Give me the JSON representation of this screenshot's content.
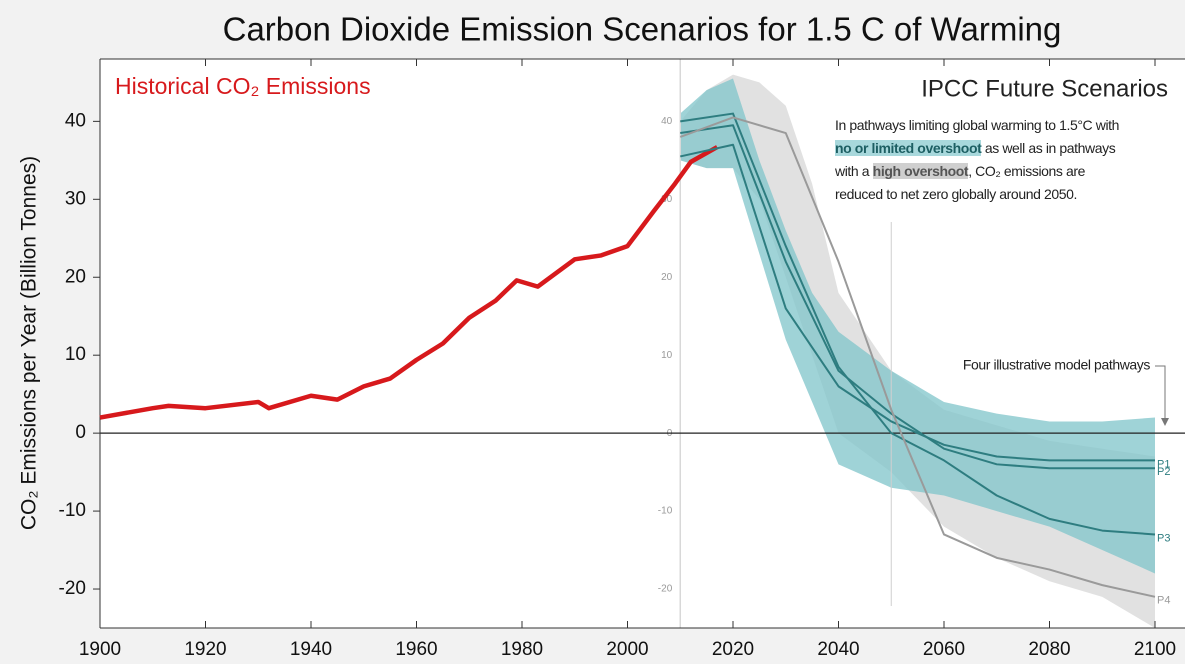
{
  "chart_data": {
    "type": "line",
    "title": "Carbon Dioxide Emission Scenarios for 1.5 C of Warming",
    "y_label": "CO₂ Emissions per Year (Billion Tonnes)",
    "annotations": {
      "future": "IPCC Future Scenarios",
      "note": [
        "In pathways limiting global warming to 1.5°C with ",
        "no or limited overshoot",
        " as well as in pathways with a ",
        "high overshoot",
        ", CO₂ emissions are reduced to net zero globally around 2050."
      ],
      "pathways": "Four illustrative model pathways"
    },
    "xlim": [
      1900,
      2100
    ],
    "xticks": [
      1900,
      1920,
      1940,
      1960,
      1980,
      2000,
      2020,
      2040,
      2060,
      2080,
      2100
    ],
    "ylim": [
      -25,
      48
    ],
    "yticks": [
      -20,
      -10,
      0,
      10,
      20,
      30,
      40
    ],
    "bands": [
      {
        "color": "#d9d9d9",
        "x": [
          2010,
          2015,
          2020,
          2025,
          2030,
          2035,
          2040,
          2050,
          2060,
          2070,
          2080,
          2090,
          2100
        ],
        "upper": [
          40,
          44,
          46,
          45,
          42,
          32,
          18,
          8,
          3,
          1,
          -1,
          -2,
          -3
        ],
        "lower": [
          35,
          34,
          34,
          30,
          20,
          10,
          0,
          -5,
          -12,
          -16,
          -19,
          -21,
          -25
        ]
      },
      {
        "color": "#7fc4c9",
        "x": [
          2010,
          2015,
          2020,
          2025,
          2030,
          2035,
          2040,
          2050,
          2060,
          2070,
          2080,
          2090,
          2100
        ],
        "upper": [
          41,
          44,
          45.5,
          35,
          26,
          18,
          13,
          8,
          4,
          2.5,
          1.5,
          1.5,
          2
        ],
        "lower": [
          35,
          34,
          34,
          23,
          12,
          4,
          -4,
          -7,
          -8,
          -10,
          -12,
          -15,
          -18
        ]
      }
    ],
    "series": [
      {
        "name": "Historical CO₂ Emissions",
        "color": "#d7191c",
        "x": [
          1900,
          1910,
          1913,
          1920,
          1930,
          1932,
          1940,
          1945,
          1950,
          1955,
          1960,
          1965,
          1970,
          1975,
          1979,
          1983,
          1990,
          1995,
          2000,
          2005,
          2009,
          2012,
          2017
        ],
        "values": [
          2,
          3.2,
          3.5,
          3.2,
          4,
          3.2,
          4.8,
          4.3,
          6,
          7,
          9.4,
          11.5,
          14.8,
          17,
          19.6,
          18.8,
          22.3,
          22.8,
          24,
          28.5,
          32,
          34.8,
          36.7
        ]
      },
      {
        "name": "P1",
        "color": "#2e7d80",
        "x": [
          2010,
          2020,
          2030,
          2040,
          2050,
          2060,
          2070,
          2080,
          2100
        ],
        "values": [
          35.5,
          37,
          16,
          6,
          1.5,
          -1.5,
          -3,
          -3.5,
          -3.5
        ]
      },
      {
        "name": "P2",
        "color": "#2e7d80",
        "x": [
          2010,
          2020,
          2030,
          2040,
          2050,
          2060,
          2070,
          2080,
          2100
        ],
        "values": [
          38.5,
          39.5,
          22,
          8,
          2.5,
          -2,
          -4,
          -4.5,
          -4.5
        ]
      },
      {
        "name": "P3",
        "color": "#2e7d80",
        "x": [
          2010,
          2020,
          2030,
          2040,
          2050,
          2060,
          2070,
          2080,
          2090,
          2100
        ],
        "values": [
          40,
          41,
          24,
          8.5,
          0,
          -3.5,
          -8,
          -11,
          -12.5,
          -13
        ]
      },
      {
        "name": "P4",
        "color": "#9a9a9a",
        "x": [
          2010,
          2020,
          2030,
          2040,
          2050,
          2060,
          2070,
          2080,
          2090,
          2100
        ],
        "values": [
          38,
          40.5,
          38.5,
          22,
          3,
          -13,
          -16,
          -17.5,
          -19.5,
          -21
        ]
      }
    ]
  }
}
